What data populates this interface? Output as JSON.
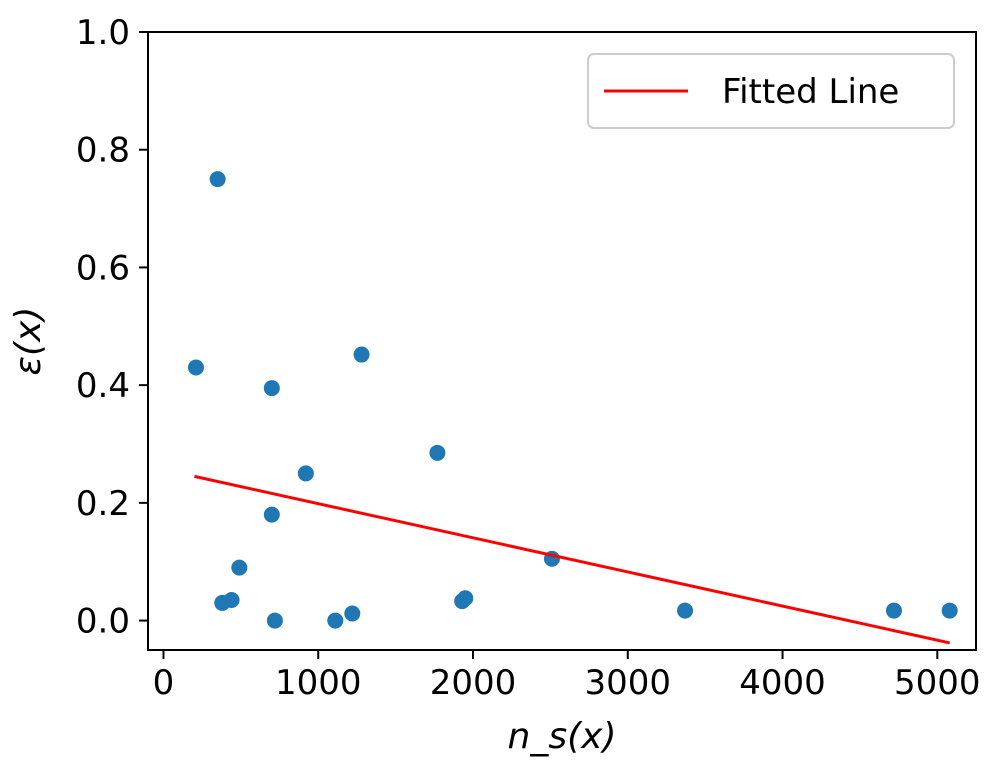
{
  "chart_data": {
    "type": "scatter",
    "title": "",
    "xlabel": "n_s(x)",
    "ylabel": "ε(x)",
    "xlim": [
      -100,
      5250
    ],
    "ylim": [
      -0.05,
      1.0
    ],
    "xticks": [
      0,
      1000,
      2000,
      3000,
      4000,
      5000
    ],
    "xtick_labels": [
      "0",
      "1000",
      "2000",
      "3000",
      "4000",
      "5000"
    ],
    "yticks": [
      0.0,
      0.2,
      0.4,
      0.6,
      0.8,
      1.0
    ],
    "ytick_labels": [
      "0.0",
      "0.2",
      "0.4",
      "0.6",
      "0.8",
      "1.0"
    ],
    "grid": false,
    "legend_position": "top-right",
    "series": [
      {
        "kind": "scatter",
        "color": "#1f77b4",
        "points": [
          [
            210,
            0.43
          ],
          [
            350,
            0.75
          ],
          [
            380,
            0.03
          ],
          [
            440,
            0.035
          ],
          [
            490,
            0.09
          ],
          [
            700,
            0.395
          ],
          [
            700,
            0.18
          ],
          [
            720,
            0.0
          ],
          [
            920,
            0.25
          ],
          [
            1110,
            0.0
          ],
          [
            1220,
            0.012
          ],
          [
            1280,
            0.452
          ],
          [
            1770,
            0.285
          ],
          [
            1930,
            0.033
          ],
          [
            1950,
            0.038
          ],
          [
            2510,
            0.105
          ],
          [
            3370,
            0.017
          ],
          [
            4720,
            0.017
          ],
          [
            5080,
            0.017
          ]
        ]
      },
      {
        "kind": "line",
        "name": "Fitted Line",
        "color": "#ff0000",
        "points": [
          [
            200,
            0.245
          ],
          [
            5080,
            -0.038
          ]
        ]
      }
    ]
  }
}
